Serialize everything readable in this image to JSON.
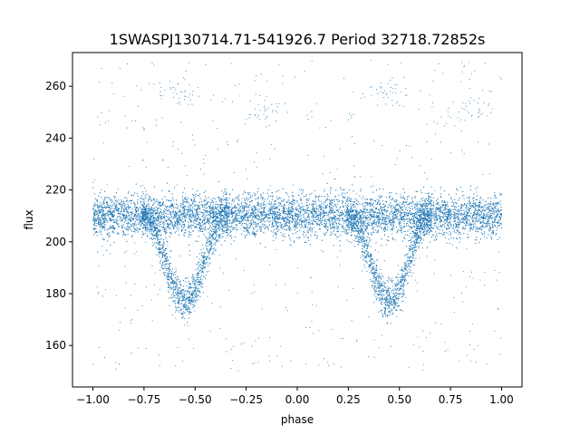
{
  "chart_data": {
    "type": "scatter",
    "title": "1SWASPJ130714.71-541926.7 Period 32718.72852s",
    "xlabel": "phase",
    "ylabel": "flux",
    "xlim": [
      -1.1,
      1.1
    ],
    "ylim": [
      144,
      273
    ],
    "xticks": [
      -1.0,
      -0.75,
      -0.5,
      -0.25,
      0.0,
      0.25,
      0.5,
      0.75,
      1.0
    ],
    "xtick_labels": [
      "−1.00",
      "−0.75",
      "−0.50",
      "−0.25",
      "0.00",
      "0.25",
      "0.50",
      "0.75",
      "1.00"
    ],
    "yticks": [
      160,
      180,
      200,
      220,
      240,
      260
    ],
    "ytick_labels": [
      "160",
      "180",
      "200",
      "220",
      "240",
      "260"
    ],
    "grid": false,
    "legend": "none",
    "marker_color": "#1f77b4",
    "phase_range": [
      -1.0,
      1.0
    ],
    "baseline_flux": 210,
    "baseline_scatter": 4,
    "minimum_phases": [
      -0.55,
      0.45
    ],
    "minimum_flux": 177,
    "minimum_half_width_phase": 0.2
  }
}
